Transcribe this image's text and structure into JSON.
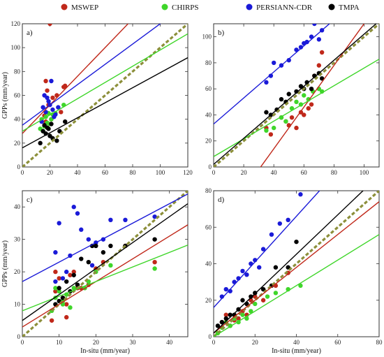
{
  "legend": [
    {
      "name": "MSWEP",
      "color": "#c0281a"
    },
    {
      "name": "CHIRPS",
      "color": "#3fd62a"
    },
    {
      "name": "PERSIANN-CDR",
      "color": "#1a1ad8"
    },
    {
      "name": "TMPA",
      "color": "#000000"
    }
  ],
  "colors": {
    "MSWEP": "#c0281a",
    "CHIRPS": "#3fd62a",
    "PERSIANN-CDR": "#1a1ad8",
    "TMPA": "#000000",
    "one_to_one": "#8c8f3a"
  },
  "chart_data": [
    {
      "type": "scatter",
      "panel_label": "a)",
      "xlabel": "",
      "ylabel": "GPPs (mm/year)",
      "xlim": [
        0,
        120
      ],
      "ylim": [
        0,
        120
      ],
      "xticks": [
        0,
        20,
        40,
        60,
        80,
        100,
        120
      ],
      "yticks": [
        0,
        20,
        40,
        60,
        80,
        100,
        120
      ],
      "one_to_one": true,
      "series": [
        {
          "name": "MSWEP",
          "x": [
            20,
            17,
            18,
            22,
            19,
            25,
            28,
            21,
            16,
            17,
            30,
            31
          ],
          "y": [
            120,
            72,
            64,
            58,
            52,
            60,
            46,
            40,
            43,
            38,
            67,
            68
          ],
          "fit": [
            28,
            1.2
          ]
        },
        {
          "name": "CHIRPS",
          "x": [
            14,
            16,
            18,
            20,
            22,
            15,
            17,
            19,
            30,
            24,
            13,
            21
          ],
          "y": [
            40,
            34,
            37,
            36,
            44,
            30,
            42,
            45,
            52,
            45,
            32,
            40
          ],
          "fit": [
            30,
            0.68
          ]
        },
        {
          "name": "PERSIANN-CDR",
          "x": [
            15,
            17,
            19,
            20,
            22,
            23,
            16,
            18,
            21,
            24,
            14,
            26
          ],
          "y": [
            50,
            46,
            55,
            52,
            48,
            42,
            60,
            58,
            72,
            44,
            38,
            50
          ],
          "fit": [
            35,
            0.85
          ]
        },
        {
          "name": "TMPA",
          "x": [
            15,
            17,
            19,
            20,
            22,
            25,
            27,
            13,
            16,
            18,
            21,
            31
          ],
          "y": [
            30,
            28,
            32,
            26,
            24,
            22,
            30,
            20,
            35,
            33,
            36,
            38
          ],
          "fit": [
            16,
            0.63
          ]
        }
      ]
    },
    {
      "type": "scatter",
      "panel_label": "b)",
      "xlabel": "",
      "ylabel": "",
      "xlim": [
        0,
        110
      ],
      "ylim": [
        0,
        110
      ],
      "xticks": [
        0,
        20,
        40,
        60,
        80,
        100
      ],
      "yticks": [
        0,
        20,
        40,
        60,
        80,
        100
      ],
      "one_to_one": true,
      "series": [
        {
          "name": "MSWEP",
          "x": [
            35,
            38,
            45,
            50,
            55,
            58,
            60,
            63,
            65,
            67,
            70,
            72,
            48,
            52
          ],
          "y": [
            30,
            25,
            38,
            32,
            30,
            42,
            40,
            45,
            48,
            70,
            78,
            88,
            35,
            38
          ],
          "fit": [
            -50,
            1.6
          ]
        },
        {
          "name": "CHIRPS",
          "x": [
            35,
            40,
            48,
            52,
            55,
            58,
            60,
            63,
            66,
            70,
            72,
            45
          ],
          "y": [
            28,
            30,
            35,
            45,
            50,
            48,
            55,
            52,
            58,
            60,
            58,
            38
          ],
          "fit": [
            8,
            0.68
          ]
        },
        {
          "name": "PERSIANN-CDR",
          "x": [
            35,
            38,
            40,
            45,
            50,
            55,
            58,
            60,
            62,
            65,
            67,
            70,
            72
          ],
          "y": [
            65,
            70,
            80,
            78,
            82,
            90,
            92,
            95,
            96,
            100,
            110,
            98,
            105
          ],
          "fit": [
            33,
            1.0
          ]
        },
        {
          "name": "TMPA",
          "x": [
            35,
            38,
            42,
            45,
            48,
            50,
            55,
            58,
            60,
            62,
            65,
            67,
            70,
            72
          ],
          "y": [
            42,
            40,
            44,
            52,
            50,
            56,
            58,
            62,
            60,
            65,
            60,
            70,
            72,
            68
          ],
          "fit": [
            2,
            1.0
          ]
        }
      ]
    },
    {
      "type": "scatter",
      "panel_label": "c)",
      "xlabel": "In-situ (mm/year)",
      "ylabel": "GPPs (mm/year)",
      "xlim": [
        0,
        45
      ],
      "ylim": [
        0,
        45
      ],
      "xticks": [
        0,
        10,
        20,
        30,
        40
      ],
      "yticks": [
        0,
        10,
        20,
        30,
        40
      ],
      "one_to_one": true,
      "series": [
        {
          "name": "MSWEP",
          "x": [
            8,
            9,
            10,
            11,
            12,
            13,
            14,
            15,
            16,
            18,
            20,
            22,
            28,
            36,
            9,
            12
          ],
          "y": [
            5,
            14,
            18,
            12,
            6,
            19,
            20,
            15,
            15,
            16,
            21,
            23,
            28,
            23,
            20,
            10
          ],
          "fit": [
            3,
            0.7
          ]
        },
        {
          "name": "CHIRPS",
          "x": [
            8,
            9,
            10,
            11,
            12,
            13,
            14,
            15,
            17,
            18,
            20,
            24,
            36,
            11,
            9
          ],
          "y": [
            8,
            12,
            14,
            10,
            13,
            9,
            15,
            16,
            15,
            17,
            20,
            22,
            21,
            11,
            15
          ],
          "fit": [
            8,
            0.45
          ]
        },
        {
          "name": "PERSIANN-CDR",
          "x": [
            9,
            10,
            11,
            12,
            13,
            14,
            15,
            16,
            18,
            19,
            20,
            22,
            24,
            28,
            36,
            9
          ],
          "y": [
            26,
            35,
            18,
            20,
            25,
            40,
            38,
            33,
            30,
            22,
            29,
            30,
            36,
            36,
            37,
            17
          ],
          "fit": [
            17,
            0.6
          ]
        },
        {
          "name": "TMPA",
          "x": [
            9,
            10,
            11,
            12,
            13,
            14,
            15,
            16,
            18,
            19,
            20,
            22,
            24,
            28,
            36,
            10
          ],
          "y": [
            10,
            15,
            12,
            17,
            14,
            19,
            16,
            24,
            23,
            28,
            28,
            26,
            28,
            28,
            30,
            11
          ],
          "fit": [
            5,
            0.8
          ]
        }
      ]
    },
    {
      "type": "scatter",
      "panel_label": "d)",
      "xlabel": "In-situ (mm/year)",
      "ylabel": "",
      "xlim": [
        0,
        80
      ],
      "ylim": [
        0,
        80
      ],
      "xticks": [
        0,
        20,
        40,
        60,
        80
      ],
      "yticks": [
        0,
        20,
        40,
        60,
        80
      ],
      "one_to_one": true,
      "series": [
        {
          "name": "MSWEP",
          "x": [
            2,
            4,
            6,
            8,
            10,
            12,
            14,
            16,
            18,
            20,
            24,
            30,
            36
          ],
          "y": [
            2,
            8,
            12,
            6,
            9,
            10,
            14,
            12,
            20,
            22,
            20,
            28,
            35
          ],
          "fit": [
            2,
            0.9
          ]
        },
        {
          "name": "CHIRPS",
          "x": [
            2,
            4,
            6,
            8,
            10,
            12,
            14,
            16,
            18,
            20,
            26,
            30,
            36,
            42
          ],
          "y": [
            2,
            5,
            8,
            6,
            10,
            8,
            12,
            10,
            14,
            18,
            22,
            24,
            26,
            28
          ],
          "fit": [
            0,
            0.7
          ]
        },
        {
          "name": "PERSIANN-CDR",
          "x": [
            4,
            6,
            8,
            10,
            12,
            14,
            16,
            18,
            20,
            22,
            24,
            28,
            32,
            36,
            42
          ],
          "y": [
            22,
            26,
            25,
            30,
            32,
            36,
            34,
            40,
            42,
            38,
            48,
            56,
            62,
            64,
            78
          ],
          "fit": [
            16,
            1.25
          ]
        },
        {
          "name": "TMPA",
          "x": [
            2,
            4,
            6,
            8,
            10,
            12,
            14,
            16,
            18,
            20,
            24,
            28,
            30,
            36,
            40
          ],
          "y": [
            6,
            8,
            10,
            12,
            12,
            15,
            20,
            18,
            22,
            24,
            26,
            28,
            38,
            38,
            52
          ],
          "fit": [
            2,
            1.08
          ]
        }
      ]
    }
  ]
}
